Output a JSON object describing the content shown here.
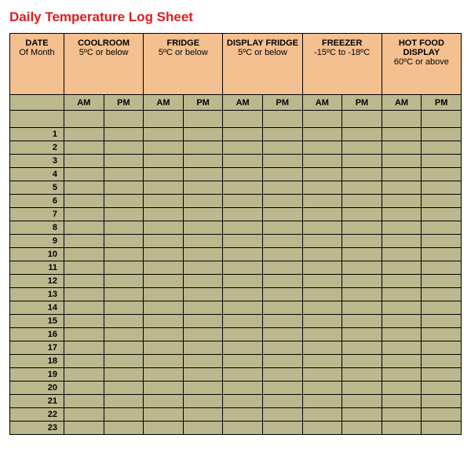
{
  "title": "Daily Temperature Log Sheet",
  "title_color": "#e41a1c",
  "header_bg": "#f5c08f",
  "body_bg": "#bcb88e",
  "border_color": "#000000",
  "columns": [
    {
      "l1": "DATE",
      "l2": "Of Month"
    },
    {
      "l1": "COOLROOM",
      "l2": "5ºC or below"
    },
    {
      "l1": "FRIDGE",
      "l2": "5ºC or below"
    },
    {
      "l1": "DISPLAY FRIDGE",
      "l2": "5ºC or below"
    },
    {
      "l1": "FREEZER",
      "l2": "-15ºC to -18ºC"
    },
    {
      "l1": "HOT FOOD DISPLAY",
      "l2": "60ºC or above"
    }
  ],
  "subcols": [
    "AM",
    "PM"
  ],
  "date_col_width_pct": 12,
  "subcol_width_pct": 8.8,
  "row_count": 23
}
